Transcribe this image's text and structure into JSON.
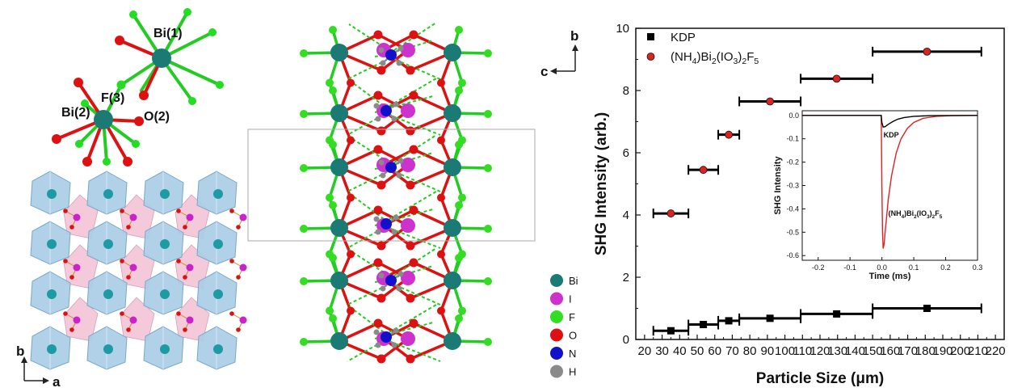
{
  "structure": {
    "cluster_labels": [
      "Bi(1)",
      "F(3)",
      "Bi(2)",
      "O(2)"
    ],
    "axes_left": {
      "vertical": "b",
      "horizontal": "a"
    },
    "axes_center": {
      "vertical": "b",
      "horizontal": "c"
    },
    "legend": [
      {
        "label": "Bi",
        "color": "#1b7a74"
      },
      {
        "label": "I",
        "color": "#cc33cc"
      },
      {
        "label": "F",
        "color": "#33dd22"
      },
      {
        "label": "O",
        "color": "#dd1111"
      },
      {
        "label": "N",
        "color": "#1111cc"
      },
      {
        "label": "H",
        "color": "#8a8a8a"
      }
    ]
  },
  "chart_data": [
    {
      "type": "scatter",
      "title": "",
      "xlabel": "Particle Size (μm)",
      "ylabel": "SHG Intensity (arb.)",
      "xlim": [
        15,
        225
      ],
      "ylim": [
        0,
        10
      ],
      "xticks": [
        20,
        30,
        40,
        50,
        60,
        70,
        80,
        90,
        100,
        110,
        120,
        130,
        140,
        150,
        160,
        170,
        180,
        190,
        200,
        210,
        220
      ],
      "yticks": [
        0,
        2,
        4,
        6,
        8,
        10
      ],
      "legend_position": "top-left",
      "series": [
        {
          "name": "KDP",
          "marker": "square",
          "color": "#000000",
          "x": [
            35,
            53.5,
            68,
            91.5,
            129.5,
            181
          ],
          "y": [
            0.28,
            0.48,
            0.6,
            0.68,
            0.82,
            1.0
          ],
          "x_range": [
            [
              25,
              45
            ],
            [
              45,
              62
            ],
            [
              62,
              74
            ],
            [
              74,
              109
            ],
            [
              109,
              150
            ],
            [
              150,
              212
            ]
          ]
        },
        {
          "name": "(NH4)Bi2(IO3)2F5",
          "marker": "circle",
          "color": "#dd2222",
          "x": [
            35,
            53.5,
            68,
            91.5,
            129.5,
            181
          ],
          "y": [
            4.05,
            5.45,
            6.58,
            7.65,
            8.38,
            9.25
          ],
          "x_range": [
            [
              25,
              45
            ],
            [
              45,
              62
            ],
            [
              62,
              74
            ],
            [
              74,
              109
            ],
            [
              109,
              150
            ],
            [
              150,
              212
            ]
          ]
        }
      ]
    },
    {
      "type": "line",
      "title": "",
      "xlabel": "Time (ms)",
      "ylabel": "SHG Intensity",
      "xlim": [
        -0.25,
        0.3
      ],
      "ylim": [
        -0.62,
        0.02
      ],
      "xticks": [
        -0.2,
        -0.1,
        0.0,
        0.1,
        0.2,
        0.3
      ],
      "yticks": [
        0.0,
        -0.1,
        -0.2,
        -0.3,
        -0.4,
        -0.5,
        -0.6
      ],
      "series": [
        {
          "name": "KDP",
          "color": "#000000",
          "x": [
            -0.25,
            -0.002,
            0.0,
            0.004,
            0.01,
            0.02,
            0.035,
            0.05,
            0.07,
            0.1,
            0.15,
            0.3
          ],
          "y": [
            0.0,
            0.0,
            -0.03,
            -0.05,
            -0.048,
            -0.038,
            -0.026,
            -0.016,
            -0.009,
            -0.004,
            -0.001,
            0.0
          ]
        },
        {
          "name": "(NH4)Bi2(IO3)2F5",
          "color": "#dd2222",
          "x": [
            -0.25,
            -0.002,
            0.0,
            0.002,
            0.004,
            0.007,
            0.01,
            0.015,
            0.02,
            0.03,
            0.045,
            0.06,
            0.08,
            0.1,
            0.13,
            0.17,
            0.22,
            0.3
          ],
          "y": [
            0.0,
            0.0,
            -0.3,
            -0.5,
            -0.57,
            -0.55,
            -0.5,
            -0.43,
            -0.36,
            -0.26,
            -0.16,
            -0.1,
            -0.055,
            -0.03,
            -0.012,
            -0.004,
            -0.001,
            0.0
          ]
        }
      ],
      "annotations": [
        "KDP",
        "(NH4)Bi2(IO3)2F5"
      ]
    }
  ]
}
